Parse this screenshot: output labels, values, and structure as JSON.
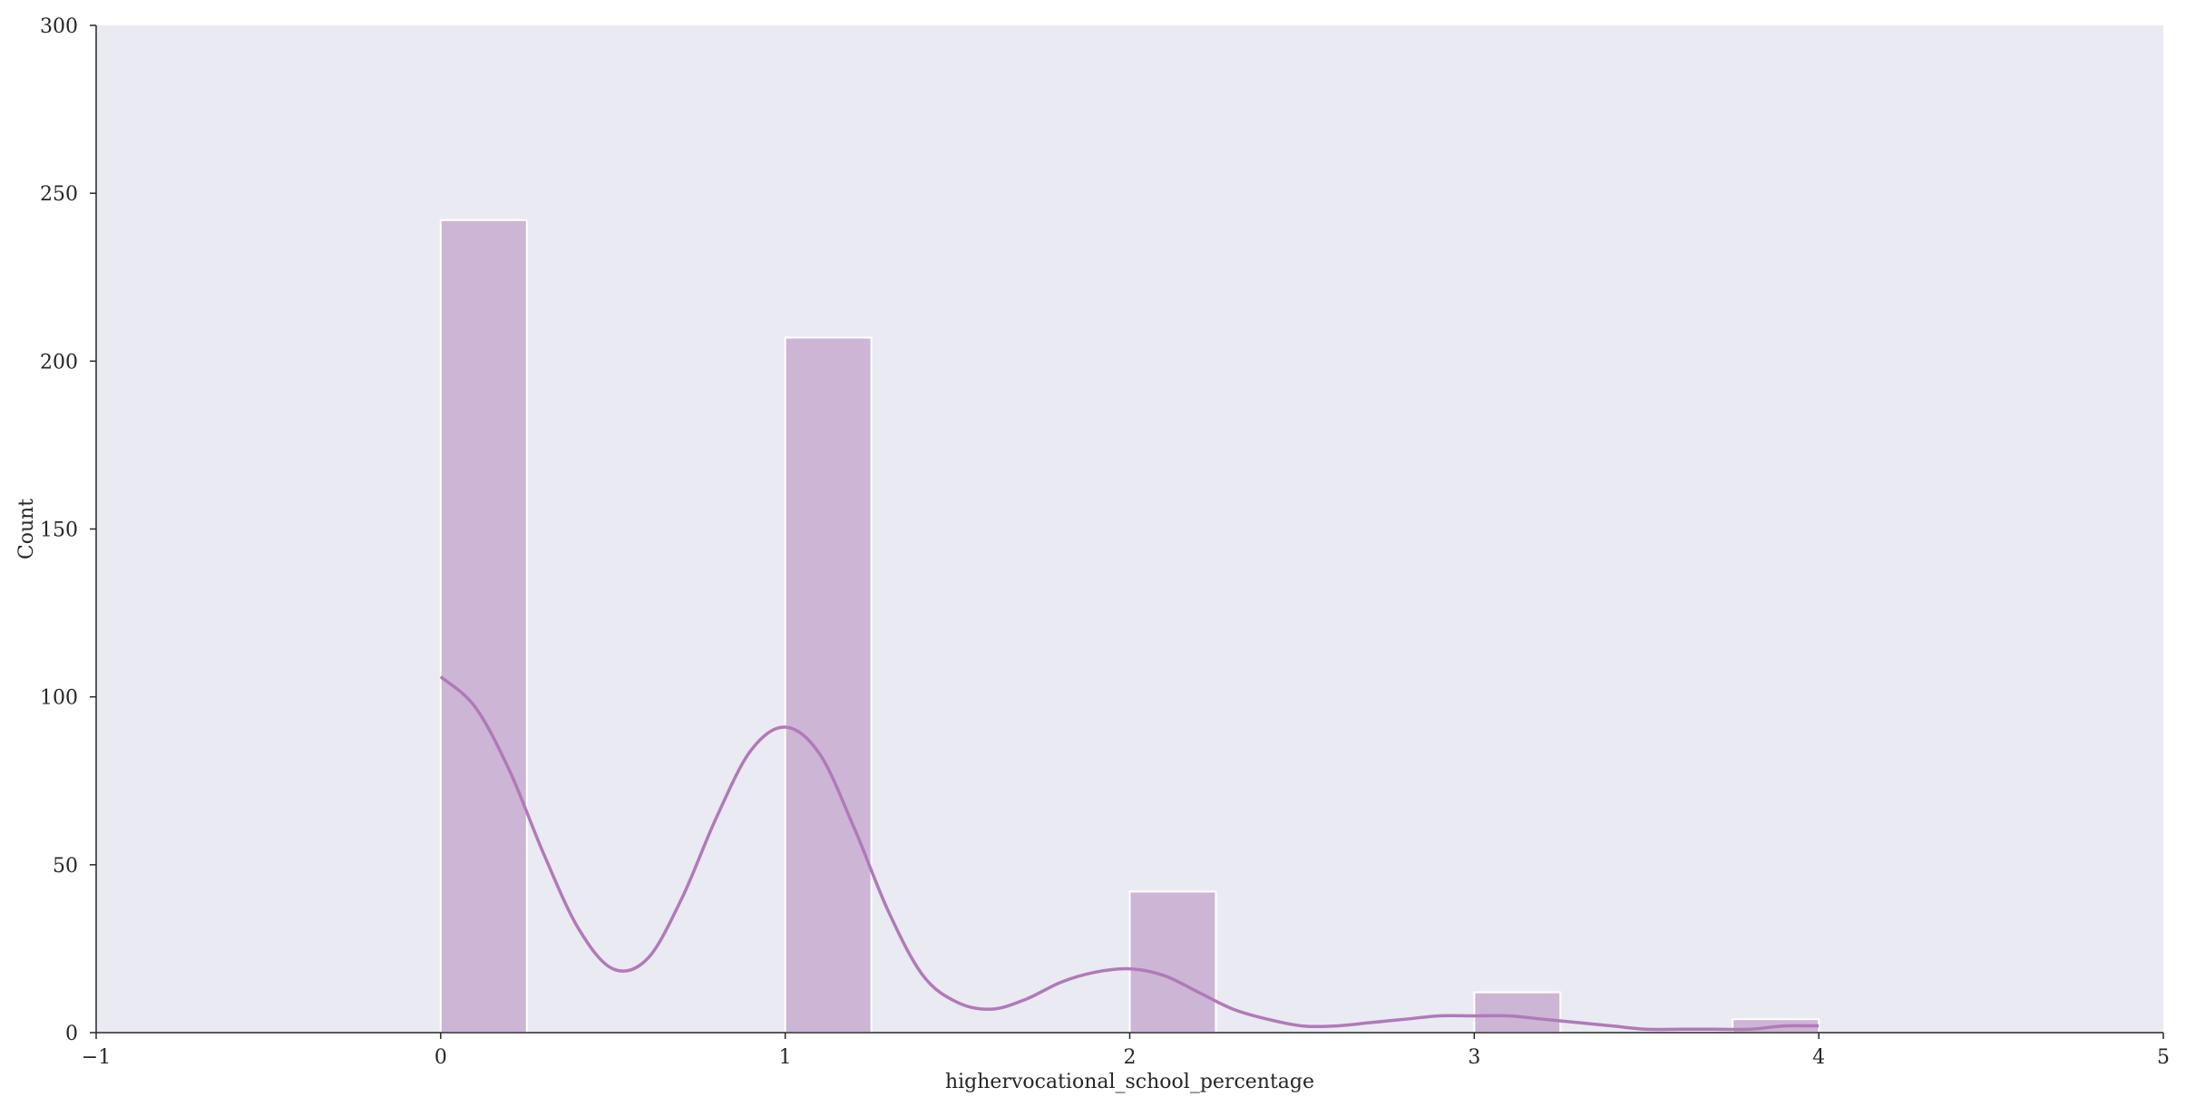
{
  "chart_data": {
    "type": "bar",
    "title": "",
    "xlabel": "highervocational_school_percentage",
    "ylabel": "Count",
    "xlim": [
      -1,
      5
    ],
    "ylim": [
      0,
      300
    ],
    "xticks": [
      -1,
      0,
      1,
      2,
      3,
      4,
      5
    ],
    "xtick_labels": [
      "−1",
      "0",
      "1",
      "2",
      "3",
      "4",
      "5"
    ],
    "yticks": [
      0,
      50,
      100,
      150,
      200,
      250,
      300
    ],
    "ytick_labels": [
      "0",
      "50",
      "100",
      "150",
      "200",
      "250",
      "300"
    ],
    "grid": false,
    "legend": "none",
    "bins": [
      {
        "x0": 0.0,
        "x1": 0.25,
        "count": 242
      },
      {
        "x0": 1.0,
        "x1": 1.25,
        "count": 207
      },
      {
        "x0": 2.0,
        "x1": 2.25,
        "count": 42
      },
      {
        "x0": 3.0,
        "x1": 3.25,
        "count": 12
      },
      {
        "x0": 3.75,
        "x1": 4.0,
        "count": 4
      }
    ],
    "kde": {
      "x": [
        0.0,
        0.1,
        0.2,
        0.3,
        0.4,
        0.5,
        0.6,
        0.7,
        0.8,
        0.9,
        1.0,
        1.1,
        1.2,
        1.3,
        1.4,
        1.5,
        1.6,
        1.7,
        1.8,
        1.9,
        2.0,
        2.1,
        2.2,
        2.3,
        2.4,
        2.5,
        2.6,
        2.7,
        2.8,
        2.9,
        3.0,
        3.1,
        3.2,
        3.3,
        3.4,
        3.5,
        3.6,
        3.7,
        3.8,
        3.9,
        4.0
      ],
      "y": [
        106,
        97,
        78,
        53,
        31,
        19,
        22,
        40,
        64,
        84,
        91,
        83,
        61,
        36,
        17,
        9,
        7,
        10,
        15,
        18,
        19,
        17,
        12,
        7,
        4,
        2,
        2,
        3,
        4,
        5,
        5,
        5,
        4,
        3,
        2,
        1,
        1,
        1,
        1,
        2,
        2
      ]
    },
    "colors": {
      "plot_background": "#eaeaf2",
      "bar_fill": "#cdb5d6",
      "bar_edge": "#ffffff",
      "kde_line": "#b07ab8",
      "axis": "#262626"
    }
  }
}
